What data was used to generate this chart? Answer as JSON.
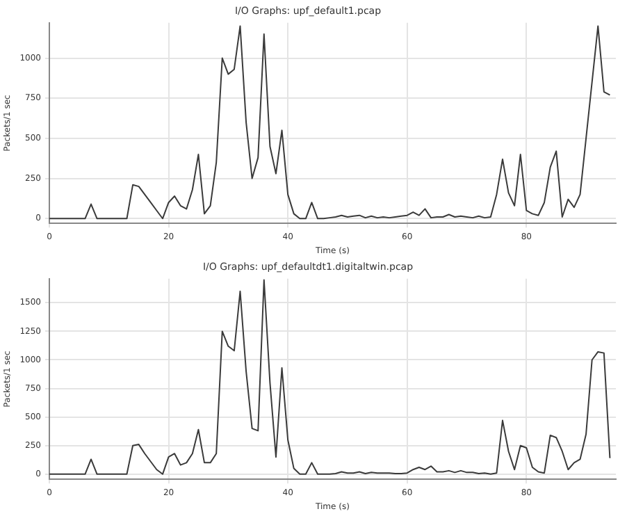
{
  "chart_data": [
    {
      "type": "line",
      "title": "I/O Graphs: upf_default1.pcap",
      "xlabel": "Time (s)",
      "ylabel": "Packets/1 sec",
      "xlim": [
        0,
        95
      ],
      "xticks": [
        0,
        20,
        40,
        60,
        80
      ],
      "ylim": [
        -30,
        1220
      ],
      "yticks": [
        0,
        250,
        500,
        750,
        1000
      ],
      "grid": true,
      "legend": false,
      "marker": "none",
      "line_style": "solid",
      "x": [
        0,
        1,
        2,
        3,
        4,
        5,
        6,
        7,
        8,
        9,
        10,
        11,
        12,
        13,
        14,
        15,
        16,
        17,
        18,
        19,
        20,
        21,
        22,
        23,
        24,
        25,
        26,
        27,
        28,
        29,
        30,
        31,
        32,
        33,
        34,
        35,
        36,
        37,
        38,
        39,
        40,
        41,
        42,
        43,
        44,
        45,
        46,
        47,
        48,
        49,
        50,
        51,
        52,
        53,
        54,
        55,
        56,
        57,
        58,
        59,
        60,
        61,
        62,
        63,
        64,
        65,
        66,
        67,
        68,
        69,
        70,
        71,
        72,
        73,
        74,
        75,
        76,
        77,
        78,
        79,
        80,
        81,
        82,
        83,
        84,
        85,
        86,
        87,
        88,
        89,
        90,
        91,
        92,
        93,
        94
      ],
      "series": [
        {
          "color": "#3a3a3a",
          "values": [
            0,
            0,
            0,
            0,
            0,
            0,
            0,
            90,
            0,
            0,
            0,
            0,
            0,
            0,
            210,
            200,
            150,
            100,
            50,
            0,
            100,
            140,
            80,
            60,
            180,
            400,
            30,
            80,
            350,
            1000,
            900,
            930,
            1200,
            600,
            250,
            380,
            1150,
            450,
            280,
            550,
            150,
            30,
            0,
            0,
            100,
            0,
            0,
            5,
            10,
            20,
            10,
            15,
            20,
            5,
            15,
            5,
            10,
            5,
            10,
            15,
            20,
            40,
            20,
            60,
            5,
            10,
            10,
            25,
            10,
            15,
            10,
            5,
            15,
            5,
            10,
            150,
            370,
            160,
            80,
            400,
            50,
            30,
            20,
            100,
            320,
            420,
            10,
            120,
            70,
            150,
            500,
            850,
            1200,
            790,
            770
          ]
        }
      ]
    },
    {
      "type": "line",
      "title": "I/O Graphs: upf_defaultdt1.digitaltwin.pcap",
      "xlabel": "Time (s)",
      "ylabel": "Packets/1 sec",
      "xlim": [
        0,
        95
      ],
      "xticks": [
        0,
        20,
        40,
        60,
        80
      ],
      "ylim": [
        -45,
        1710
      ],
      "yticks": [
        0,
        250,
        500,
        750,
        1000,
        1250,
        1500
      ],
      "grid": true,
      "legend": false,
      "marker": "none",
      "line_style": "solid",
      "x": [
        0,
        1,
        2,
        3,
        4,
        5,
        6,
        7,
        8,
        9,
        10,
        11,
        12,
        13,
        14,
        15,
        16,
        17,
        18,
        19,
        20,
        21,
        22,
        23,
        24,
        25,
        26,
        27,
        28,
        29,
        30,
        31,
        32,
        33,
        34,
        35,
        36,
        37,
        38,
        39,
        40,
        41,
        42,
        43,
        44,
        45,
        46,
        47,
        48,
        49,
        50,
        51,
        52,
        53,
        54,
        55,
        56,
        57,
        58,
        59,
        60,
        61,
        62,
        63,
        64,
        65,
        66,
        67,
        68,
        69,
        70,
        71,
        72,
        73,
        74,
        75,
        76,
        77,
        78,
        79,
        80,
        81,
        82,
        83,
        84,
        85,
        86,
        87,
        88,
        89,
        90,
        91,
        92,
        93,
        94
      ],
      "series": [
        {
          "color": "#3a3a3a",
          "values": [
            0,
            0,
            0,
            0,
            0,
            0,
            0,
            130,
            0,
            0,
            0,
            0,
            0,
            0,
            250,
            260,
            180,
            110,
            40,
            0,
            150,
            180,
            80,
            100,
            180,
            390,
            100,
            100,
            180,
            1250,
            1120,
            1080,
            1600,
            900,
            400,
            380,
            1700,
            800,
            150,
            930,
            300,
            50,
            0,
            0,
            100,
            0,
            0,
            0,
            5,
            20,
            10,
            10,
            20,
            5,
            15,
            10,
            10,
            10,
            5,
            5,
            10,
            40,
            60,
            40,
            70,
            20,
            20,
            30,
            15,
            30,
            15,
            15,
            5,
            10,
            0,
            10,
            470,
            200,
            40,
            250,
            230,
            60,
            20,
            10,
            340,
            320,
            200,
            40,
            100,
            130,
            350,
            1000,
            1070,
            1060,
            140
          ]
        }
      ]
    }
  ]
}
